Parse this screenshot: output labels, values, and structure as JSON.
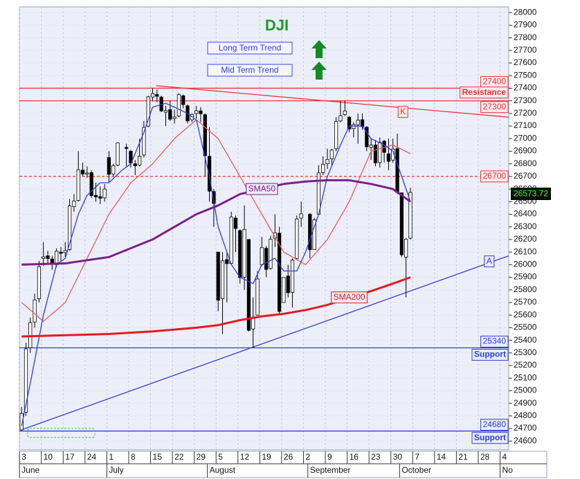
{
  "chart_data": {
    "type": "candlestick",
    "title": "DJI",
    "trend_indicators": [
      "Long Term Trend",
      "Mid Term Trend"
    ],
    "last_price": 26573.72,
    "ylim": [
      24530,
      28045
    ],
    "yticks": [
      24600,
      24700,
      24800,
      24900,
      25000,
      25100,
      25200,
      25300,
      25400,
      25500,
      25600,
      25700,
      25800,
      25900,
      26000,
      26100,
      26200,
      26300,
      26400,
      26500,
      26600,
      26700,
      26800,
      26900,
      27000,
      27100,
      27200,
      27300,
      27400,
      27500,
      27600,
      27700,
      27800,
      27900,
      28000
    ],
    "grid": true,
    "candle_colors": {
      "up": "#ffffff",
      "down": "#000000"
    },
    "categories": [
      "3",
      null,
      null,
      null,
      null,
      "10",
      null,
      null,
      null,
      null,
      "17",
      null,
      null,
      null,
      null,
      "24",
      null,
      null,
      null,
      null,
      "1",
      null,
      null,
      null,
      null,
      "8",
      null,
      null,
      null,
      null,
      "15",
      null,
      null,
      null,
      null,
      "22",
      null,
      null,
      null,
      null,
      "29",
      null,
      null,
      null,
      null,
      "5",
      null,
      null,
      null,
      null,
      "12",
      null,
      null,
      null,
      null,
      "19",
      null,
      null,
      null,
      null,
      "26",
      null,
      null,
      null,
      null,
      "2",
      null,
      null,
      null,
      null,
      "9",
      null,
      null,
      null,
      null,
      "16",
      null,
      null,
      null,
      null,
      "23",
      null,
      null,
      null,
      null,
      "30",
      null,
      null,
      null,
      null,
      "7",
      null,
      null,
      null,
      null,
      "14",
      null,
      null,
      null,
      null,
      "21",
      null,
      null,
      null,
      null,
      "28",
      null,
      null,
      null,
      null,
      "4",
      null
    ],
    "months": [
      "June",
      null,
      null,
      null,
      null,
      null,
      null,
      null,
      null,
      null,
      null,
      null,
      null,
      null,
      null,
      null,
      null,
      null,
      null,
      null,
      "July",
      null,
      null,
      null,
      null,
      null,
      null,
      null,
      null,
      null,
      null,
      null,
      null,
      null,
      null,
      null,
      null,
      null,
      null,
      null,
      null,
      null,
      null,
      "August",
      null,
      null,
      null,
      null,
      null,
      null,
      null,
      null,
      null,
      null,
      null,
      null,
      null,
      null,
      null,
      null,
      null,
      null,
      null,
      null,
      null,
      null,
      "September",
      null,
      null,
      null,
      null,
      null,
      null,
      null,
      null,
      null,
      null,
      null,
      null,
      null,
      null,
      null,
      null,
      null,
      null,
      null,
      null,
      "October",
      null,
      null,
      null,
      null,
      null,
      null,
      null,
      null,
      null,
      null,
      null,
      null,
      null,
      null,
      null,
      null,
      null,
      null,
      null,
      null,
      null,
      null,
      "No",
      null,
      null
    ],
    "open": [
      24690,
      24830,
      25340,
      25545,
      25730,
      26050,
      26070,
      26045,
      26000,
      26100,
      26095,
      26120,
      26460,
      26510,
      26750,
      26720,
      26730,
      26550,
      26540,
      26530,
      26850,
      26720,
      26790,
      null,
      26930,
      26900,
      26800,
      26790,
      26870,
      27100,
      27330,
      27350,
      27330,
      27210,
      27230,
      27160,
      27180,
      27340,
      27260,
      27150,
      27200,
      27220,
      27190,
      26860,
      26580,
      26100,
      25730,
      26040,
      26010,
      26370,
      26270,
      25900,
      26200,
      25490,
      25600,
      26000,
      26130,
      25970,
      26210,
      26250,
      25700,
      25910,
      25780,
      26050,
      26370,
      null,
      26400,
      26120,
      26400,
      26730,
      26800,
      26840,
      26920,
      27140,
      27190,
      27170,
      27080,
      27110,
      27150,
      27090,
      26930,
      26950,
      26810,
      26980,
      26880,
      26830,
      26920,
      26570,
      26060,
      26210,
      null,
      null,
      null,
      null,
      null,
      null,
      null,
      null,
      null,
      null,
      null,
      null,
      null,
      null,
      null,
      null,
      null,
      null,
      null,
      null,
      null,
      null
    ],
    "high": [
      24870,
      25380,
      25580,
      25770,
      26030,
      26180,
      26110,
      26070,
      26130,
      26140,
      26180,
      26520,
      26560,
      26900,
      26810,
      26780,
      26750,
      26650,
      26620,
      26640,
      26900,
      26800,
      26970,
      null,
      26960,
      26910,
      26830,
      27000,
      27140,
      27340,
      27400,
      27390,
      27340,
      27260,
      27300,
      27230,
      27360,
      27350,
      27270,
      27200,
      27260,
      27250,
      27200,
      27090,
      26600,
      26100,
      26100,
      26100,
      26420,
      26390,
      26280,
      26470,
      26200,
      25740,
      25950,
      26220,
      26150,
      26230,
      26400,
      26300,
      25900,
      26000,
      26050,
      26390,
      26500,
      null,
      26410,
      26370,
      26790,
      26860,
      26920,
      26920,
      27170,
      27300,
      27300,
      27180,
      27130,
      27200,
      27200,
      27100,
      27000,
      26990,
      27010,
      26990,
      27000,
      27000,
      27040,
      26570,
      26210,
      26610,
      null,
      null,
      null,
      null,
      null,
      null,
      null,
      null,
      null,
      null,
      null,
      null,
      null,
      null,
      null,
      null,
      null,
      null,
      null,
      null,
      null,
      null
    ],
    "low": [
      24680,
      24800,
      25300,
      25500,
      25700,
      25990,
      26000,
      25960,
      25980,
      26030,
      26060,
      26110,
      26420,
      26500,
      26700,
      26690,
      26530,
      26500,
      26480,
      26500,
      26650,
      26700,
      26780,
      null,
      26780,
      26770,
      26710,
      26780,
      26850,
      27090,
      27300,
      27290,
      27210,
      27100,
      27140,
      27120,
      27170,
      27240,
      27120,
      27130,
      27160,
      27130,
      26700,
      26500,
      26300,
      25630,
      25450,
      25700,
      26000,
      26100,
      25850,
      25800,
      25470,
      25340,
      25600,
      25990,
      25900,
      25960,
      26140,
      25600,
      25700,
      25740,
      25660,
      26040,
      26300,
      null,
      26050,
      26120,
      26400,
      26710,
      26760,
      26790,
      26900,
      27130,
      27180,
      27050,
      27010,
      26960,
      27070,
      26900,
      26830,
      26780,
      26770,
      26810,
      26750,
      26810,
      26560,
      26060,
      25740,
      26200,
      null,
      null,
      null,
      null,
      null,
      null,
      null,
      null,
      null,
      null,
      null,
      null,
      null,
      null,
      null,
      null,
      null,
      null,
      null,
      null,
      null,
      null
    ],
    "close": [
      24820,
      25332,
      25540,
      25720,
      25984,
      26062,
      26049,
      26005,
      26107,
      26090,
      26112,
      26466,
      26504,
      26753,
      26719,
      26727,
      26548,
      26537,
      26527,
      26600,
      26717,
      26786,
      26966,
      null,
      26922,
      26806,
      26784,
      26860,
      27088,
      27332,
      27359,
      27336,
      27220,
      27223,
      27154,
      27172,
      27349,
      27270,
      27140,
      27192,
      27221,
      27198,
      26864,
      26583,
      26485,
      25718,
      26030,
      26008,
      26378,
      26287,
      25897,
      26280,
      25479,
      25579,
      25886,
      26135,
      25962,
      26202,
      26253,
      25629,
      25898,
      25777,
      26036,
      26362,
      26403,
      null,
      26118,
      26355,
      26728,
      26797,
      26835,
      26909,
      27137,
      27182,
      27220,
      27076,
      27111,
      27147,
      27095,
      26935,
      26949,
      26808,
      26970,
      26891,
      26820,
      26917,
      26573,
      26078,
      26201,
      26573,
      null,
      null,
      null,
      null,
      null,
      null,
      null,
      null,
      null,
      null,
      null,
      null,
      null,
      null,
      null,
      null,
      null,
      null,
      null,
      null,
      null,
      null
    ],
    "series": [
      {
        "color": "#f05a5a",
        "x": [
          0,
          5,
          10,
          15,
          20,
          25,
          30,
          35,
          40,
          45,
          50,
          55,
          60,
          65,
          70,
          75,
          80,
          85,
          89
        ],
        "values": [
          25700,
          25550,
          25700,
          26050,
          26400,
          26650,
          26800,
          27000,
          27150,
          27000,
          26700,
          26400,
          26100,
          26000,
          26200,
          26500,
          26900,
          26950,
          26880
        ]
      },
      {
        "color": "#2c3fd8",
        "x": [
          0,
          2,
          5,
          8,
          10,
          13,
          15,
          18,
          20,
          23,
          25,
          28,
          30,
          33,
          35,
          38,
          40,
          43,
          45,
          48,
          50,
          53,
          55,
          58,
          60,
          63,
          65,
          68,
          70,
          73,
          75,
          78,
          80,
          83,
          85,
          87,
          89
        ],
        "values": [
          24720,
          25060,
          25600,
          26000,
          26050,
          26400,
          26550,
          26650,
          26650,
          26750,
          26800,
          27050,
          27250,
          27280,
          27250,
          27200,
          27150,
          26700,
          26300,
          26000,
          25900,
          25850,
          26000,
          26050,
          25950,
          25950,
          26100,
          26400,
          26700,
          26950,
          27100,
          27100,
          27000,
          26950,
          26900,
          26700,
          26500
        ]
      },
      {
        "name": "SMA50",
        "color": "#7b1f86",
        "x": [
          0,
          10,
          20,
          30,
          40,
          45,
          50,
          55,
          60,
          65,
          70,
          75,
          80,
          85,
          89
        ],
        "values": [
          26000,
          26010,
          26060,
          26200,
          26400,
          26470,
          26560,
          26600,
          26640,
          26660,
          26670,
          26670,
          26640,
          26600,
          26500
        ]
      },
      {
        "name": "SMA200",
        "color": "#e21b23",
        "x": [
          0,
          10,
          20,
          30,
          40,
          45,
          50,
          55,
          60,
          65,
          70,
          75,
          80,
          85,
          89
        ],
        "values": [
          25430,
          25440,
          25450,
          25470,
          25500,
          25520,
          25560,
          25590,
          25610,
          25640,
          25680,
          25740,
          25790,
          25850,
          25900
        ]
      }
    ],
    "levels": [
      {
        "value": 27400,
        "color": "#e8353a"
      },
      {
        "value": 27300,
        "color": "#e8353a",
        "note": "Resistance"
      },
      {
        "value": 26700,
        "color": "#e8353a",
        "dashed": true
      },
      {
        "value": 25340,
        "color": "#2f3fd4",
        "note": "Support"
      },
      {
        "value": 24680,
        "color": "#2f3fd4",
        "note": "Support"
      }
    ],
    "trendlines": [
      {
        "label": "K",
        "color": "#e8353a",
        "x": [
          30.8,
          111.5
        ],
        "values": [
          27420,
          27170
        ]
      },
      {
        "label": "A",
        "color": "#2f3fd4",
        "x": [
          0,
          111.5
        ],
        "values": [
          24690,
          26070
        ]
      }
    ]
  }
}
